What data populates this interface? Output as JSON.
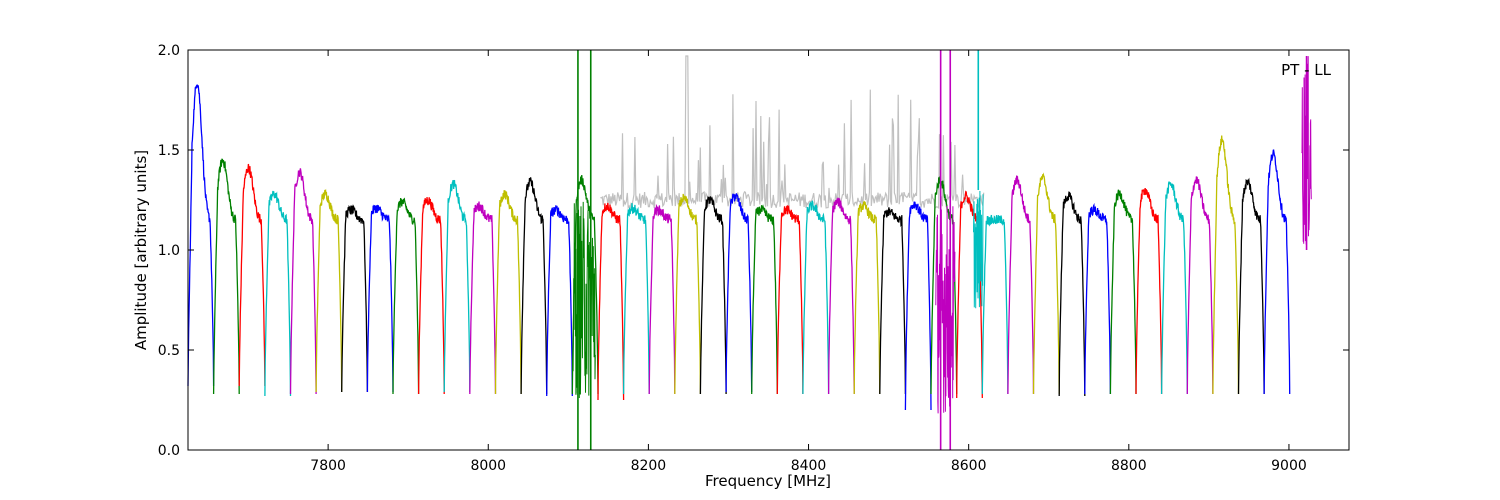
{
  "chart_data": {
    "type": "line",
    "title": "",
    "annotation": "PT - LL",
    "xlabel": "Frequency [MHz]",
    "ylabel": "Amplitude [arbitrary units]",
    "xlim": [
      7625,
      9075
    ],
    "ylim": [
      0.0,
      2.0
    ],
    "x_ticks": [
      7800,
      8000,
      8200,
      8400,
      8600,
      8800,
      9000
    ],
    "y_ticks": [
      0.0,
      0.5,
      1.0,
      1.5,
      2.0
    ],
    "x_tick_labels": [
      "7800",
      "8000",
      "8200",
      "8400",
      "8600",
      "8800",
      "9000"
    ],
    "y_tick_labels": [
      "0.0",
      "0.5",
      "1.0",
      "1.5",
      "2.0"
    ],
    "grid": false,
    "legend": "none",
    "channel_width_mhz": 32,
    "channel_start_mhz": 7625,
    "color_cycle": [
      "#0000ff",
      "#008000",
      "#ff0000",
      "#00bfbf",
      "#bf00bf",
      "#bfbf00",
      "#000000"
    ],
    "background_series": {
      "name": "",
      "color": "#c0c0c0",
      "x_range": [
        8140,
        8620
      ],
      "plateau": 1.25,
      "max_spike": 1.97
    },
    "channel_peaks": [
      1.84,
      1.45,
      1.41,
      1.28,
      1.39,
      1.28,
      1.2,
      1.21,
      1.24,
      1.25,
      1.33,
      1.22,
      1.28,
      1.34,
      1.2,
      1.35,
      1.22,
      1.21,
      1.2,
      1.26,
      1.25,
      1.27,
      1.2,
      1.2,
      1.22,
      1.24,
      1.22,
      1.19,
      1.23,
      1.35,
      1.27,
      1.15,
      1.35,
      1.36,
      1.27,
      1.2,
      1.28,
      1.3,
      1.33,
      1.35,
      1.55,
      1.34,
      1.48
    ],
    "channel_minima": [
      0.32,
      0.28,
      0.32,
      0.27,
      0.28,
      0.29,
      0.29,
      0.29,
      0.28,
      0.28,
      0.29,
      0.28,
      0.28,
      0.28,
      0.27,
      0.28,
      0.25,
      0.28,
      0.28,
      0.28,
      0.28,
      0.29,
      0.28,
      0.28,
      0.28,
      0.28,
      0.28,
      0.28,
      0.2,
      0.28,
      0.26,
      0.28,
      0.28,
      0.28,
      0.27,
      0.28,
      0.28,
      0.28,
      0.28,
      0.28,
      0.28,
      0.28,
      0.28
    ],
    "rfi_features": [
      {
        "series_color": "#008000",
        "x": [
          8112,
          8128
        ],
        "y_range": [
          0.0,
          2.0
        ],
        "band_min": 0.25,
        "band_max": 1.25
      },
      {
        "series_color": "#bf00bf",
        "x": [
          8565,
          8577
        ],
        "y_range": [
          0.0,
          2.0
        ],
        "band_min": 0.18,
        "band_max": 1.25
      },
      {
        "series_color": "#00bfbf",
        "x": [
          8612
        ],
        "y_range": [
          1.3,
          2.0
        ],
        "band_min": 0.7,
        "band_max": 1.3
      },
      {
        "series_color": "#bf00bf",
        "x": [
          9022
        ],
        "y_range": [
          1.0,
          1.97
        ],
        "band_min": 1.0,
        "band_max": 1.97
      }
    ]
  }
}
